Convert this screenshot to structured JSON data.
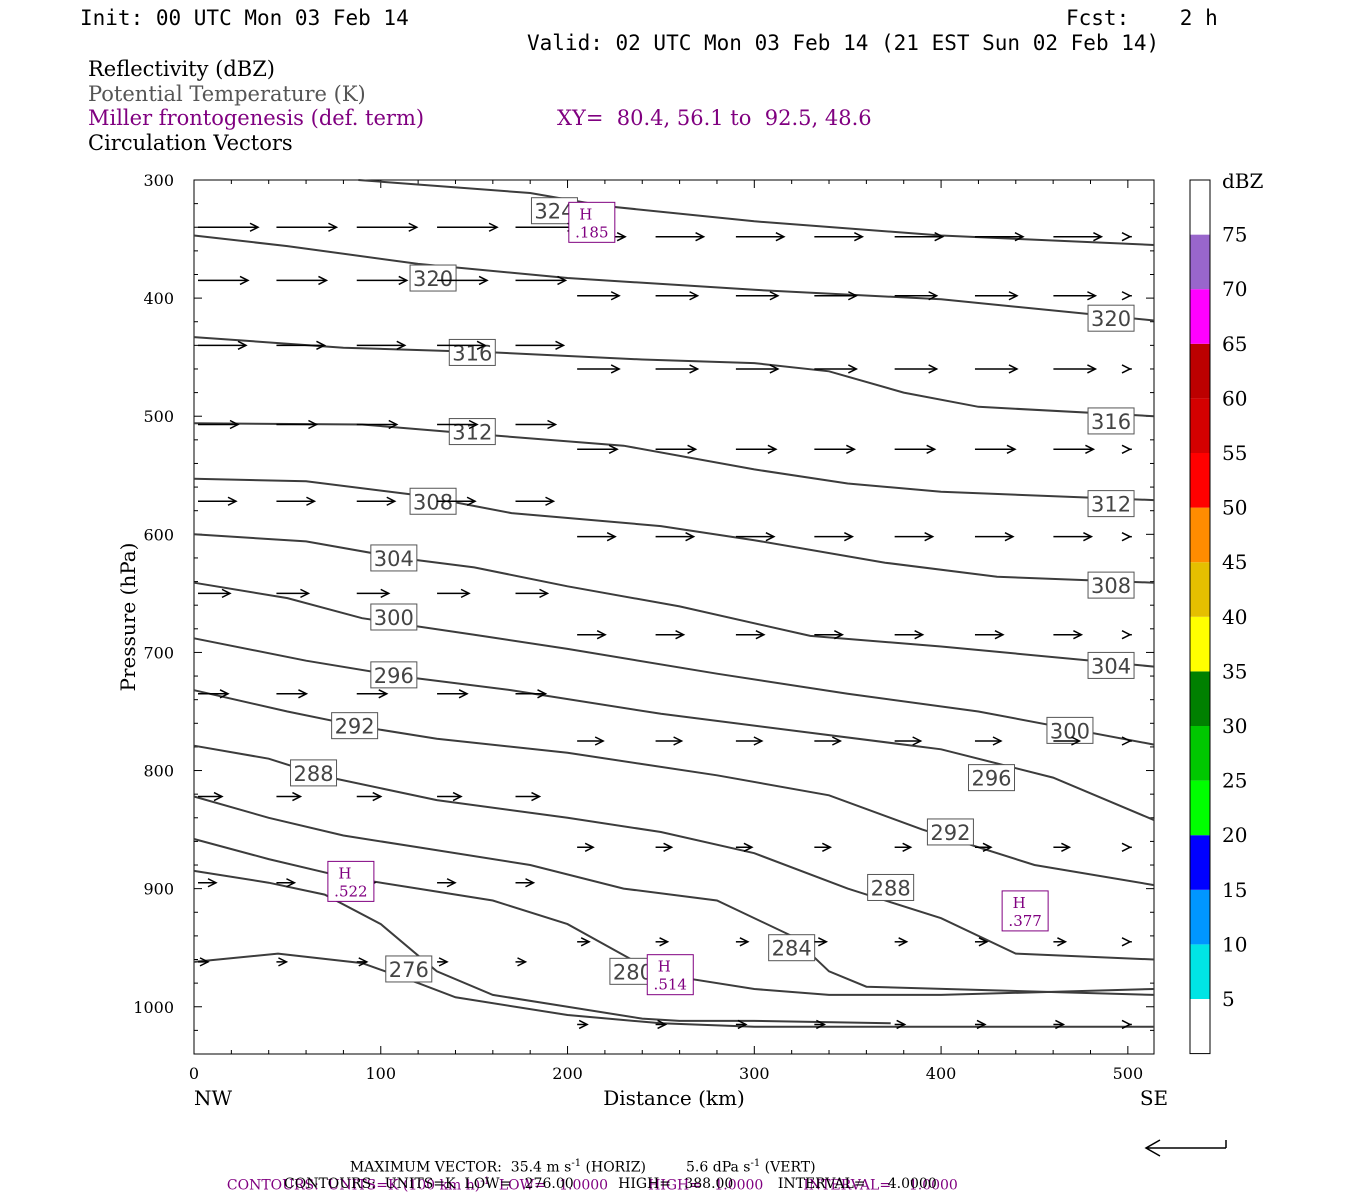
{
  "header": {
    "init": "Init: 00 UTC Mon 03 Feb 14",
    "fcst": "Fcst:    2 h",
    "valid": "Valid: 02 UTC Mon 03 Feb 14 (21 EST Sun 02 Feb 14)"
  },
  "legend": {
    "reflectivity": "Reflectivity (dBZ)",
    "theta": "Potential Temperature (K)",
    "frontogenesis": "Miller frontogenesis (def. term)",
    "xy": "XY=  80.4, 56.1 to  92.5, 48.6",
    "vectors": "Circulation Vectors"
  },
  "colors": {
    "frontogenesis": "#800080",
    "theta": "#555555",
    "contour_line": "#3c3c3c"
  },
  "chart_data": {
    "type": "cross-section",
    "ylabel": "Pressure (hPa)",
    "xlabel": "Distance (km)",
    "xlim": [
      0,
      514
    ],
    "ylim": [
      1040,
      300
    ],
    "x_ticks": [
      0,
      100,
      200,
      300,
      400,
      500
    ],
    "y_ticks": [
      300,
      400,
      500,
      600,
      700,
      800,
      900,
      1000
    ],
    "left_end_label": "NW",
    "right_end_label": "SE",
    "colorbar": {
      "unit": "dBZ",
      "levels": [
        "5",
        "10",
        "15",
        "20",
        "25",
        "30",
        "35",
        "40",
        "45",
        "50",
        "55",
        "60",
        "65",
        "70",
        "75"
      ],
      "colors": [
        "#ffffff",
        "#00e5e5",
        "#0096ff",
        "#0000ff",
        "#00ff00",
        "#00c800",
        "#008000",
        "#ffff00",
        "#e5bf00",
        "#ff8c00",
        "#ff0000",
        "#d40000",
        "#bc0000",
        "#ff00ff",
        "#9966cc",
        "#ffffff"
      ]
    },
    "theta_contours": [
      {
        "label": "324",
        "points": [
          [
            88,
            300
          ],
          [
            180,
            311
          ],
          [
            220,
            322
          ],
          [
            300,
            335
          ],
          [
            400,
            347
          ],
          [
            514,
            355
          ]
        ],
        "label_pos": [
          193,
          326
        ]
      },
      {
        "label": "320",
        "points": [
          [
            0,
            347
          ],
          [
            50,
            356
          ],
          [
            120,
            371
          ],
          [
            200,
            383
          ],
          [
            300,
            393
          ],
          [
            400,
            401
          ],
          [
            514,
            419
          ]
        ],
        "label_pos": [
          128,
          383
        ]
      },
      {
        "label": "320",
        "points": null,
        "label_pos": [
          491,
          417
        ]
      },
      {
        "label": "316",
        "points": [
          [
            0,
            433
          ],
          [
            80,
            442
          ],
          [
            160,
            446
          ],
          [
            240,
            452
          ],
          [
            300,
            455
          ],
          [
            340,
            462
          ],
          [
            380,
            480
          ],
          [
            420,
            492
          ],
          [
            514,
            500
          ]
        ],
        "label_pos": [
          149,
          446
        ]
      },
      {
        "label": "316",
        "points": null,
        "label_pos": [
          491,
          504
        ]
      },
      {
        "label": "312",
        "points": [
          [
            0,
            506
          ],
          [
            90,
            507
          ],
          [
            150,
            515
          ],
          [
            230,
            525
          ],
          [
            300,
            545
          ],
          [
            350,
            557
          ],
          [
            400,
            564
          ],
          [
            514,
            571
          ]
        ],
        "label_pos": [
          149,
          513
        ]
      },
      {
        "label": "312",
        "points": null,
        "label_pos": [
          491,
          574
        ]
      },
      {
        "label": "308",
        "points": [
          [
            0,
            553
          ],
          [
            60,
            555
          ],
          [
            120,
            567
          ],
          [
            170,
            582
          ],
          [
            250,
            593
          ],
          [
            300,
            605
          ],
          [
            370,
            624
          ],
          [
            430,
            636
          ],
          [
            514,
            641
          ]
        ],
        "label_pos": [
          128,
          572
        ]
      },
      {
        "label": "308",
        "points": null,
        "label_pos": [
          491,
          643
        ]
      },
      {
        "label": "304",
        "points": [
          [
            0,
            600
          ],
          [
            60,
            606
          ],
          [
            110,
            620
          ],
          [
            150,
            628
          ],
          [
            200,
            644
          ],
          [
            260,
            661
          ],
          [
            330,
            686
          ],
          [
            400,
            695
          ],
          [
            514,
            712
          ]
        ],
        "label_pos": [
          107,
          620
        ]
      },
      {
        "label": "304",
        "points": null,
        "label_pos": [
          491,
          711
        ]
      },
      {
        "label": "300",
        "points": [
          [
            0,
            641
          ],
          [
            50,
            654
          ],
          [
            90,
            671
          ],
          [
            150,
            685
          ],
          [
            200,
            697
          ],
          [
            280,
            718
          ],
          [
            350,
            735
          ],
          [
            420,
            750
          ],
          [
            514,
            778
          ]
        ],
        "label_pos": [
          107,
          670
        ]
      },
      {
        "label": "300",
        "points": null,
        "label_pos": [
          469,
          766
        ]
      },
      {
        "label": "296",
        "points": [
          [
            0,
            688
          ],
          [
            60,
            707
          ],
          [
            110,
            720
          ],
          [
            170,
            732
          ],
          [
            250,
            752
          ],
          [
            330,
            768
          ],
          [
            400,
            782
          ],
          [
            460,
            806
          ],
          [
            514,
            842
          ]
        ],
        "label_pos": [
          107,
          719
        ]
      },
      {
        "label": "296",
        "points": null,
        "label_pos": [
          427,
          806
        ]
      },
      {
        "label": "292",
        "points": [
          [
            0,
            732
          ],
          [
            50,
            750
          ],
          [
            90,
            763
          ],
          [
            130,
            773
          ],
          [
            200,
            785
          ],
          [
            280,
            804
          ],
          [
            340,
            821
          ],
          [
            390,
            850
          ],
          [
            450,
            880
          ],
          [
            514,
            897
          ]
        ],
        "label_pos": [
          86,
          762
        ]
      },
      {
        "label": "292",
        "points": null,
        "label_pos": [
          405,
          852
        ]
      },
      {
        "label": "288",
        "points": [
          [
            0,
            779
          ],
          [
            40,
            790
          ],
          [
            70,
            805
          ],
          [
            130,
            825
          ],
          [
            200,
            840
          ],
          [
            250,
            852
          ],
          [
            300,
            870
          ],
          [
            350,
            900
          ],
          [
            400,
            925
          ],
          [
            440,
            955
          ],
          [
            514,
            960
          ]
        ],
        "label_pos": [
          64,
          802
        ]
      },
      {
        "label": "288",
        "points": null,
        "label_pos": [
          373,
          899
        ]
      },
      {
        "label": "284",
        "points": [
          [
            0,
            822
          ],
          [
            40,
            840
          ],
          [
            80,
            855
          ],
          [
            120,
            865
          ],
          [
            180,
            880
          ],
          [
            230,
            900
          ],
          [
            280,
            910
          ],
          [
            320,
            940
          ],
          [
            340,
            970
          ],
          [
            360,
            983
          ],
          [
            514,
            990
          ]
        ],
        "label_pos": [
          320,
          950
        ]
      },
      {
        "label": "280",
        "points": [
          [
            0,
            858
          ],
          [
            40,
            875
          ],
          [
            80,
            890
          ],
          [
            120,
            900
          ],
          [
            160,
            910
          ],
          [
            200,
            930
          ],
          [
            240,
            965
          ],
          [
            260,
            975
          ],
          [
            300,
            985
          ],
          [
            340,
            990
          ],
          [
            400,
            990
          ],
          [
            514,
            985
          ]
        ],
        "label_pos": [
          235,
          970
        ]
      },
      {
        "label": "276",
        "points": [
          [
            0,
            885
          ],
          [
            40,
            895
          ],
          [
            70,
            905
          ],
          [
            100,
            930
          ],
          [
            130,
            970
          ],
          [
            160,
            990
          ],
          [
            200,
            1000
          ],
          [
            240,
            1010
          ],
          [
            260,
            1012
          ],
          [
            300,
            1012
          ],
          [
            373,
            1014
          ]
        ],
        "label_pos": [
          115,
          968
        ]
      },
      {
        "label": "",
        "points": [
          [
            0,
            962
          ],
          [
            45,
            955
          ],
          [
            90,
            963
          ],
          [
            120,
            980
          ],
          [
            140,
            992
          ],
          [
            200,
            1007
          ],
          [
            250,
            1014
          ],
          [
            300,
            1017
          ],
          [
            514,
            1017
          ]
        ],
        "label_pos": null
      }
    ],
    "frontogenesis_highs": [
      {
        "label": "H",
        "value": ".185",
        "x": 213,
        "p": 335
      },
      {
        "label": "H",
        "value": ".522",
        "x": 84,
        "p": 893
      },
      {
        "label": "H",
        "value": ".514",
        "x": 255,
        "p": 972
      },
      {
        "label": "H",
        "value": ".377",
        "x": 445,
        "p": 918
      }
    ],
    "vectors_note": "circulation vectors, mostly horizontal toward SE",
    "footer": {
      "max_vector": "MAXIMUM VECTOR:  35.4 m s",
      "max_vector_horiz": "(HORIZ)",
      "max_vector_vert": "5.6 dPa s",
      "max_vector_vert_unit": "(VERT)",
      "contours_fg": "CONTOURS:  UNITS=K (100 km h)",
      "contours_fg_rest": "LOW=   1.0000         HIGH=   1.0000         INTERVAL=    1.0000",
      "contours_theta": "CONTOURS:  UNITS=K  LOW=   276.00          HIGH=   388.00          INTERVAL=     4.0000"
    }
  }
}
